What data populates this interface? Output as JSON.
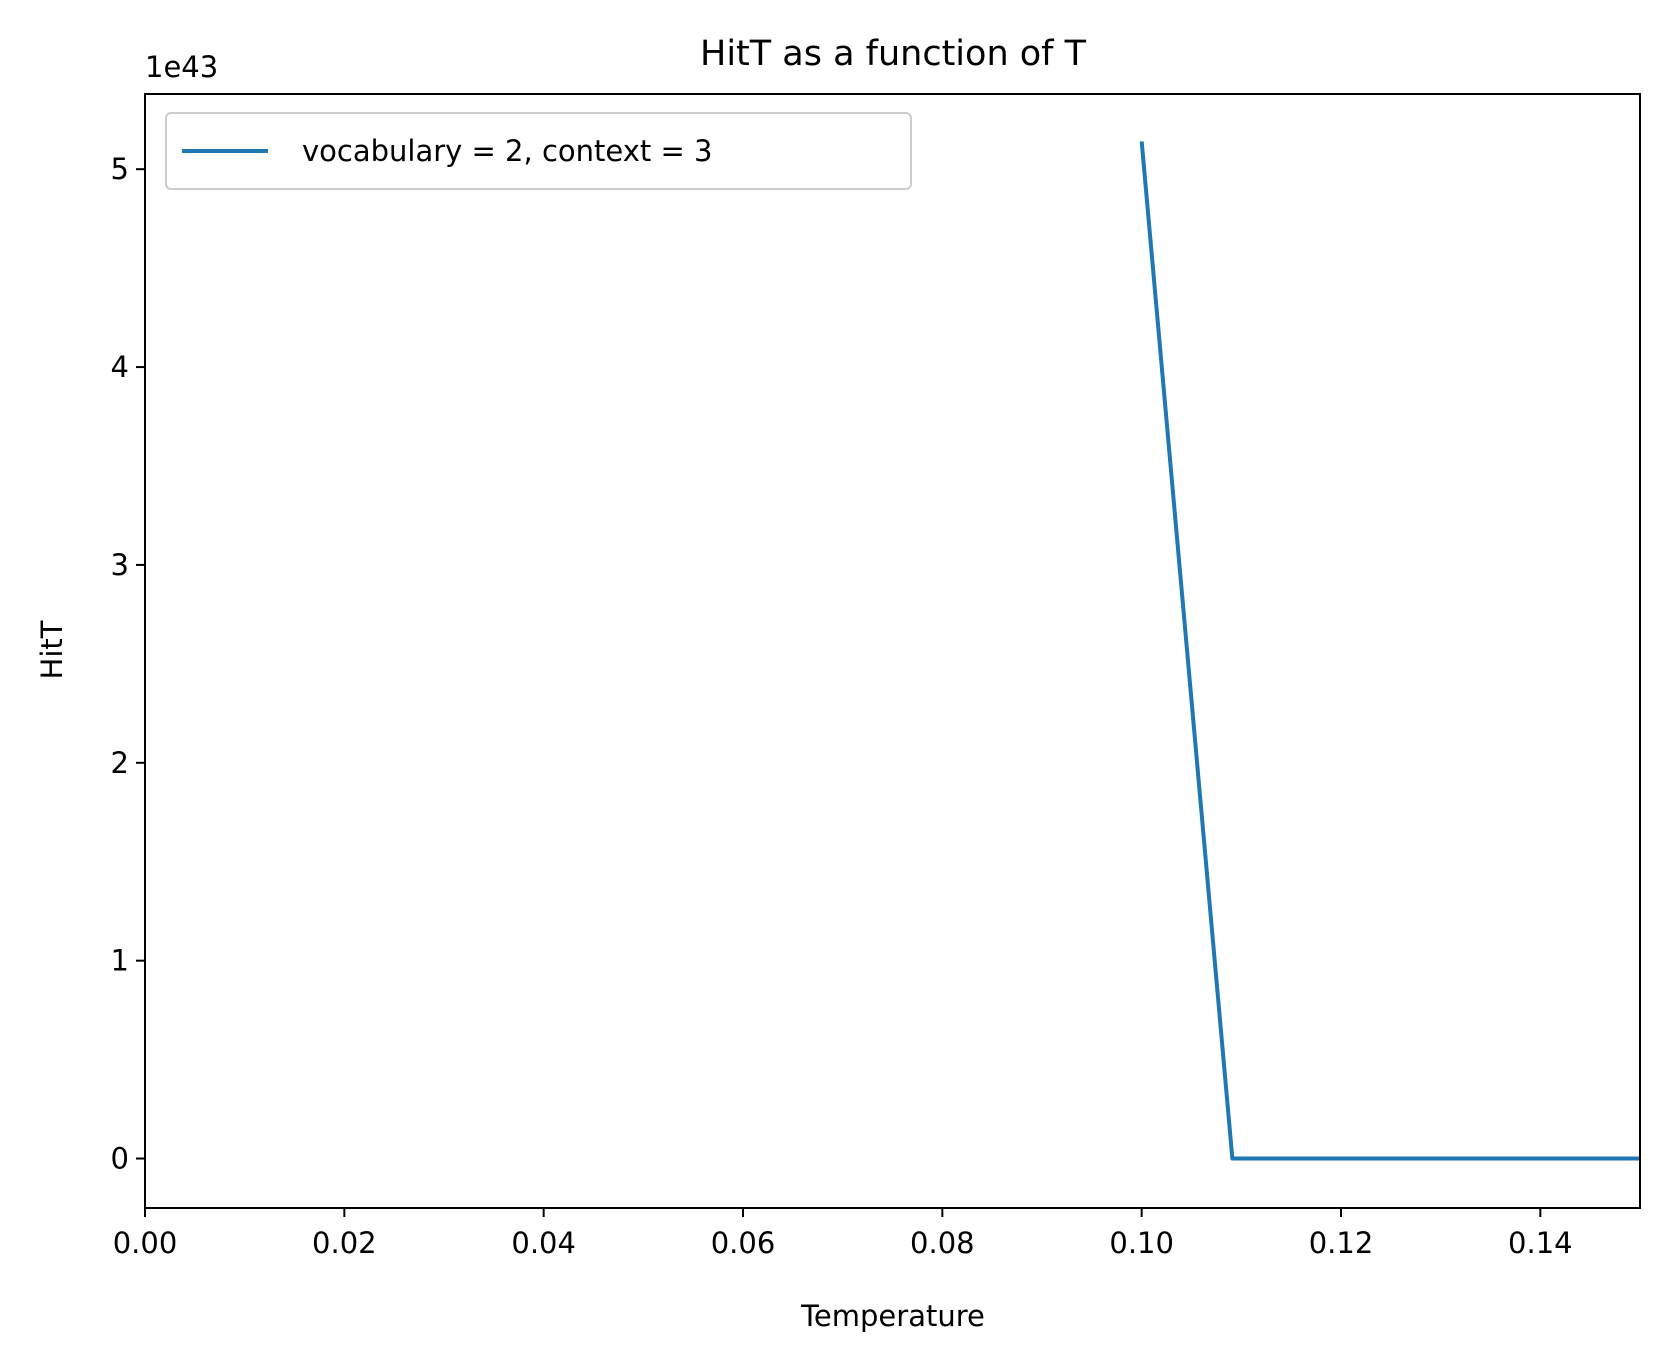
{
  "chart_data": {
    "type": "line",
    "title": "HitT as a function of T",
    "xlabel": "Temperature",
    "ylabel": "HitT",
    "y_offset_label": "1e43",
    "xlim": [
      0.0,
      0.15
    ],
    "ylim": [
      -0.25,
      5.38
    ],
    "x_ticks": [
      0.0,
      0.02,
      0.04,
      0.06,
      0.08,
      0.1,
      0.12,
      0.14
    ],
    "x_tick_labels": [
      "0.00",
      "0.02",
      "0.04",
      "0.06",
      "0.08",
      "0.10",
      "0.12",
      "0.14"
    ],
    "y_ticks": [
      0,
      1,
      2,
      3,
      4,
      5
    ],
    "y_tick_labels": [
      "0",
      "1",
      "2",
      "3",
      "4",
      "5"
    ],
    "legend_position": "top-left",
    "grid": false,
    "series": [
      {
        "name": "vocabulary = 2, context = 3",
        "color": "#1f77b4",
        "x": [
          0.1,
          0.1091,
          0.12,
          0.13,
          0.14,
          0.15
        ],
        "y": [
          5.14,
          0.0,
          0.0,
          0.0,
          0.0,
          0.0
        ]
      }
    ]
  }
}
